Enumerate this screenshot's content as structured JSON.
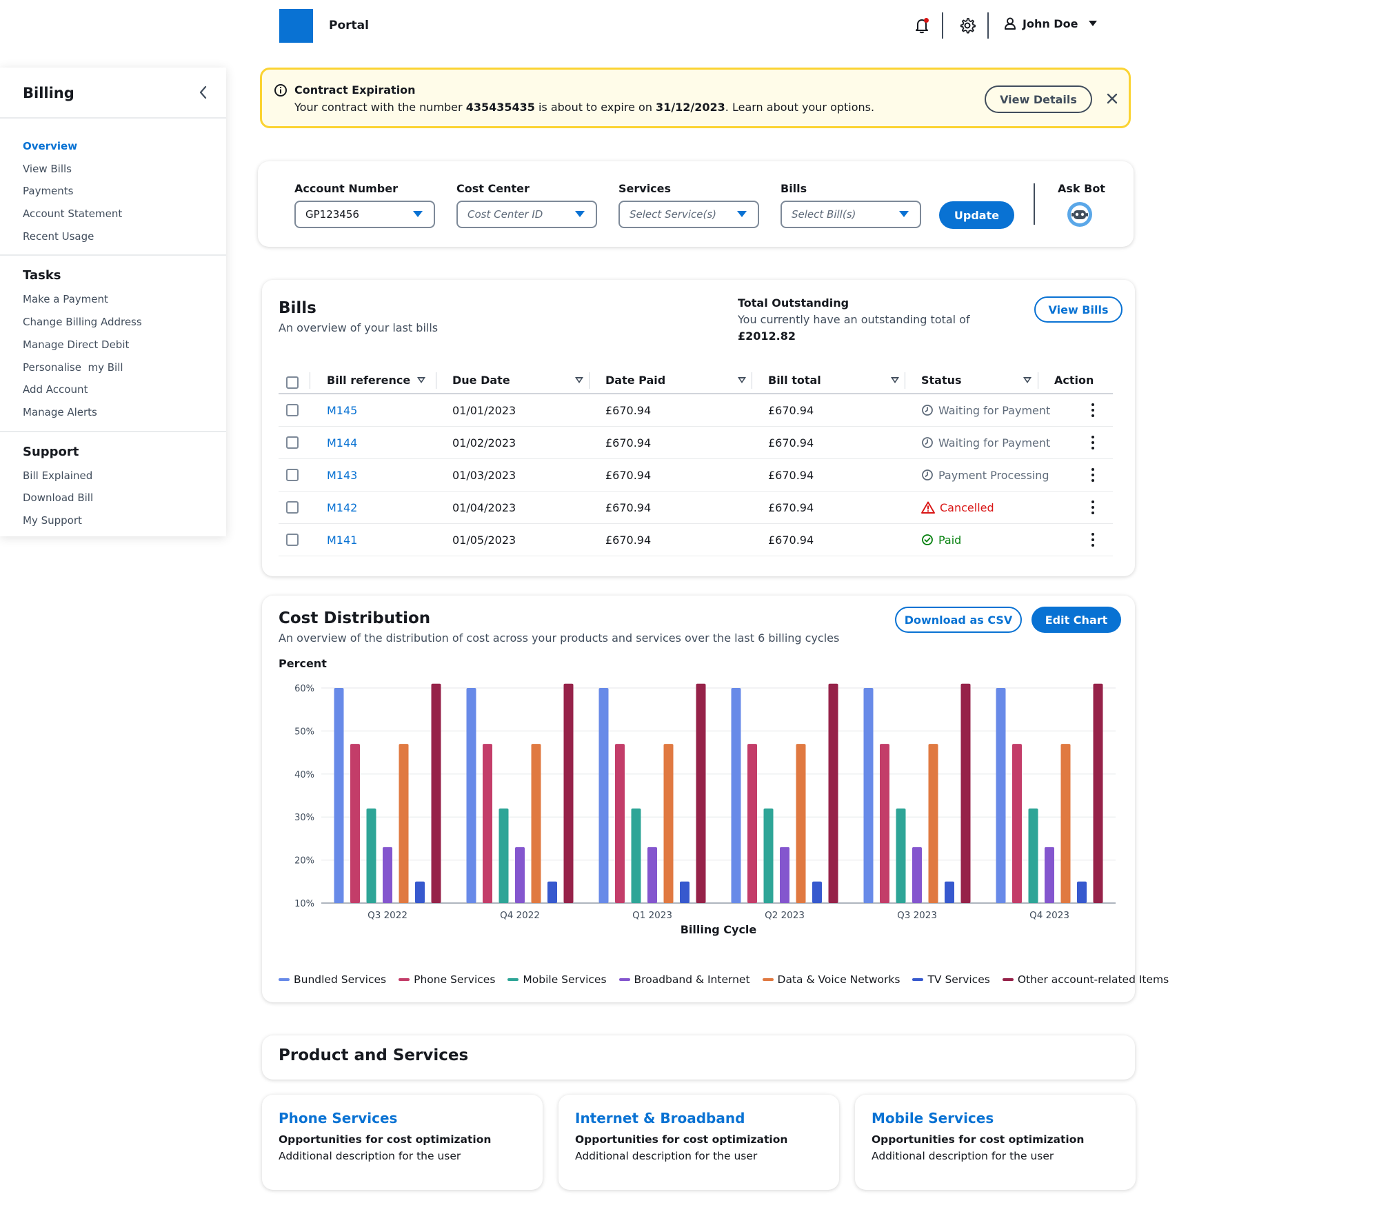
{
  "header": {
    "title": "Portal",
    "user_name": "John Doe"
  },
  "sidebar": {
    "title": "Billing",
    "sections": [
      {
        "heading": "",
        "items": [
          {
            "label": "Overview",
            "active": true
          },
          {
            "label": "View Bills"
          },
          {
            "label": "Payments"
          },
          {
            "label": "Account Statement"
          },
          {
            "label": "Recent Usage"
          }
        ]
      },
      {
        "heading": "Tasks",
        "items": [
          {
            "label": "Make a Payment"
          },
          {
            "label": "Change Billing Address"
          },
          {
            "label": "Manage Direct Debit"
          },
          {
            "label": "Personalise  my Bill"
          },
          {
            "label": "Add Account"
          },
          {
            "label": "Manage Alerts"
          }
        ]
      },
      {
        "heading": "Support",
        "items": [
          {
            "label": "Bill Explained"
          },
          {
            "label": "Download Bill"
          },
          {
            "label": "My Support"
          }
        ]
      }
    ]
  },
  "alert": {
    "title": "Contract Expiration",
    "text_before": "Your contract with the number ",
    "contract_number": "435435435",
    "text_middle": " is about to expire on ",
    "expiry_date": "31/12/2023",
    "text_after": ". Learn about your options.",
    "button_label": "View Details"
  },
  "filters": {
    "account": {
      "label": "Account Number",
      "value": "GP123456"
    },
    "cost_center": {
      "label": "Cost Center",
      "placeholder": "Cost Center ID"
    },
    "services": {
      "label": "Services",
      "placeholder": "Select Service(s)"
    },
    "bills": {
      "label": "Bills",
      "placeholder": "Select Bill(s)"
    },
    "update_label": "Update",
    "ask_bot_label": "Ask Bot"
  },
  "bills": {
    "title": "Bills",
    "subtitle": "An overview of your last bills",
    "outstanding_title": "Total Outstanding",
    "outstanding_text": "You currently have an outstanding total of",
    "outstanding_amount": "£2012.82",
    "view_bills_label": "View Bills",
    "columns": [
      "Bill reference",
      "Due Date",
      "Date Paid",
      "Bill total",
      "Status",
      "Action"
    ],
    "rows": [
      {
        "ref": "M145",
        "due": "01/01/2023",
        "paid": "£670.94",
        "total": "£670.94",
        "status": "Waiting for Payment",
        "kind": "waiting"
      },
      {
        "ref": "M144",
        "due": "01/02/2023",
        "paid": "£670.94",
        "total": "£670.94",
        "status": "Waiting for Payment",
        "kind": "waiting"
      },
      {
        "ref": "M143",
        "due": "01/03/2023",
        "paid": "£670.94",
        "total": "£670.94",
        "status": "Payment Processing",
        "kind": "waiting"
      },
      {
        "ref": "M142",
        "due": "01/04/2023",
        "paid": "£670.94",
        "total": "£670.94",
        "status": "Cancelled",
        "kind": "cancelled"
      },
      {
        "ref": "M141",
        "due": "01/05/2023",
        "paid": "£670.94",
        "total": "£670.94",
        "status": "Paid",
        "kind": "paid"
      }
    ]
  },
  "cost": {
    "title": "Cost Distribution",
    "subtitle": "An overview of the distribution of cost across your products and services over the last 6 billing cycles",
    "download_label": "Download as CSV",
    "edit_label": "Edit Chart"
  },
  "chart_data": {
    "type": "bar",
    "ylabel": "Percent",
    "xlabel": "Billing Cycle",
    "ylim": [
      10,
      60
    ],
    "yticks": [
      "60%",
      "50%",
      "40%",
      "30%",
      "20%",
      "10%"
    ],
    "ytick_values": [
      60,
      50,
      40,
      30,
      20,
      10
    ],
    "categories": [
      "Q3 2022",
      "Q4 2022",
      "Q1 2023",
      "Q2 2023",
      "Q3 2023",
      "Q4 2023"
    ],
    "grid": true,
    "legend_position": "bottom",
    "series": [
      {
        "name": "Bundled Services",
        "color": "#688ae8",
        "values": [
          60,
          60,
          60,
          60,
          60,
          60
        ]
      },
      {
        "name": "Phone Services",
        "color": "#c33d69",
        "values": [
          47,
          47,
          47,
          47,
          47,
          47
        ]
      },
      {
        "name": "Mobile Services",
        "color": "#2ea597",
        "values": [
          32,
          32,
          32,
          32,
          32,
          32
        ]
      },
      {
        "name": "Broadband & Internet",
        "color": "#8456ce",
        "values": [
          23,
          23,
          23,
          23,
          23,
          23
        ]
      },
      {
        "name": "Data & Voice Networks",
        "color": "#e07941",
        "values": [
          47,
          47,
          47,
          47,
          47,
          47
        ]
      },
      {
        "name": "TV Services",
        "color": "#3759ce",
        "values": [
          15,
          15,
          15,
          15,
          15,
          15
        ]
      },
      {
        "name": "Other account-related Items",
        "color": "#962249",
        "values": [
          61,
          61,
          61,
          61,
          61,
          61
        ]
      }
    ]
  },
  "products": {
    "title": "Product and Services",
    "cards": [
      {
        "title": "Phone Services",
        "subtitle": "Opportunities for cost optimization",
        "description": "Additional description for the user"
      },
      {
        "title": "Internet & Broadband",
        "subtitle": "Opportunities for cost optimization",
        "description": "Additional description for the user"
      },
      {
        "title": "Mobile Services",
        "subtitle": "Opportunities for cost optimization",
        "description": "Additional description for the user"
      }
    ]
  }
}
